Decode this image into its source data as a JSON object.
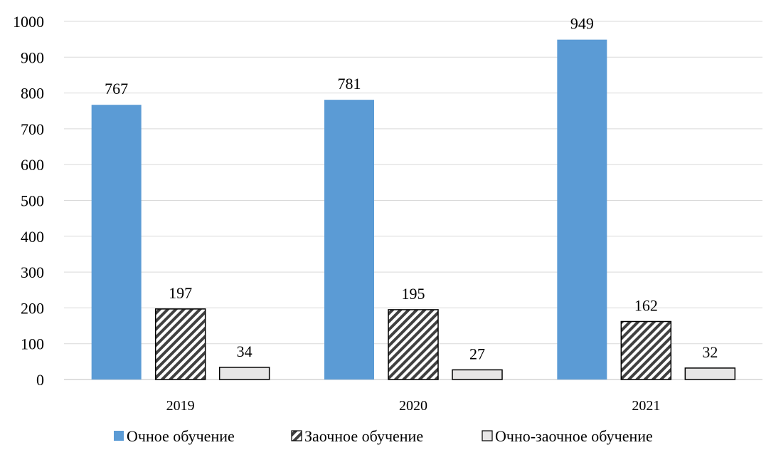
{
  "chart_data": {
    "type": "bar",
    "categories": [
      "2019",
      "2020",
      "2021"
    ],
    "series": [
      {
        "name": "Очное обучение",
        "values": [
          767,
          781,
          949
        ],
        "color": "#5b9bd5",
        "pattern": "solid"
      },
      {
        "name": "Заочное обучение",
        "values": [
          197,
          195,
          162
        ],
        "color": "#ffffff",
        "pattern": "diagonal-hatch"
      },
      {
        "name": "Очно-заочное обучение",
        "values": [
          34,
          27,
          32
        ],
        "color": "#e7e6e6",
        "pattern": "solid"
      }
    ],
    "yticks": [
      "0",
      "100",
      "200",
      "300",
      "400",
      "500",
      "600",
      "700",
      "800",
      "900",
      "1000"
    ],
    "ylim": [
      0,
      1000
    ],
    "title": "",
    "xlabel": "",
    "ylabel": "",
    "grid": true,
    "legend_position": "bottom",
    "data_labels": true
  }
}
